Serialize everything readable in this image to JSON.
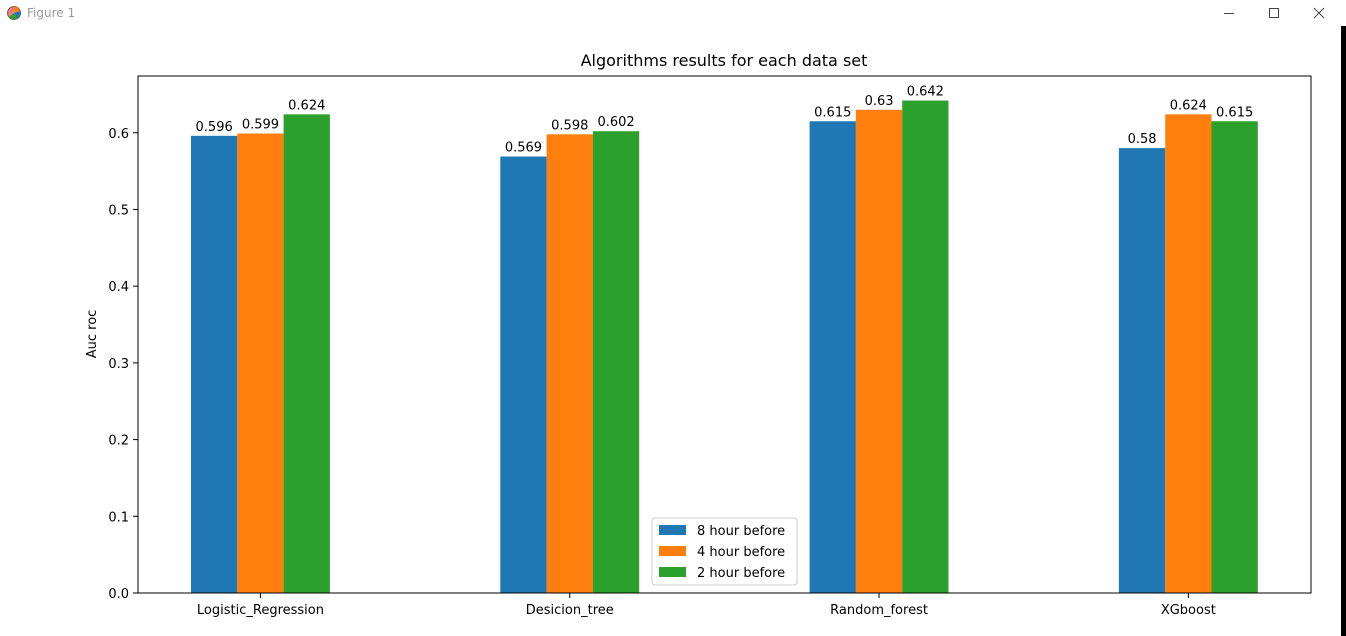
{
  "window": {
    "title": "Figure 1",
    "controls": [
      "minimize-icon",
      "maximize-icon",
      "close-icon"
    ]
  },
  "chart_data": {
    "type": "bar",
    "title": "Algorithms results for each data set",
    "xlabel": "",
    "ylabel": "Auc roc",
    "categories": [
      "Logistic_Regression",
      "Desicion_tree",
      "Random_forest",
      "XGboost"
    ],
    "series": [
      {
        "name": "8 hour before",
        "color": "#1f77b4",
        "values": [
          0.596,
          0.569,
          0.615,
          0.58
        ]
      },
      {
        "name": "4 hour before",
        "color": "#ff7f0e",
        "values": [
          0.599,
          0.598,
          0.63,
          0.624
        ]
      },
      {
        "name": "2 hour before",
        "color": "#2ca02c",
        "values": [
          0.624,
          0.602,
          0.642,
          0.615
        ]
      }
    ],
    "data_labels": [
      [
        "0.596",
        "0.569",
        "0.615",
        "0.58"
      ],
      [
        "0.599",
        "0.598",
        "0.63",
        "0.624"
      ],
      [
        "0.624",
        "0.602",
        "0.642",
        "0.615"
      ]
    ],
    "yticks": [
      0.0,
      0.1,
      0.2,
      0.3,
      0.4,
      0.5,
      0.6
    ],
    "ytick_labels": [
      "0.0",
      "0.1",
      "0.2",
      "0.3",
      "0.4",
      "0.5",
      "0.6"
    ],
    "ylim": [
      0,
      0.674
    ],
    "grid": false,
    "legend_position": "lower-center"
  }
}
